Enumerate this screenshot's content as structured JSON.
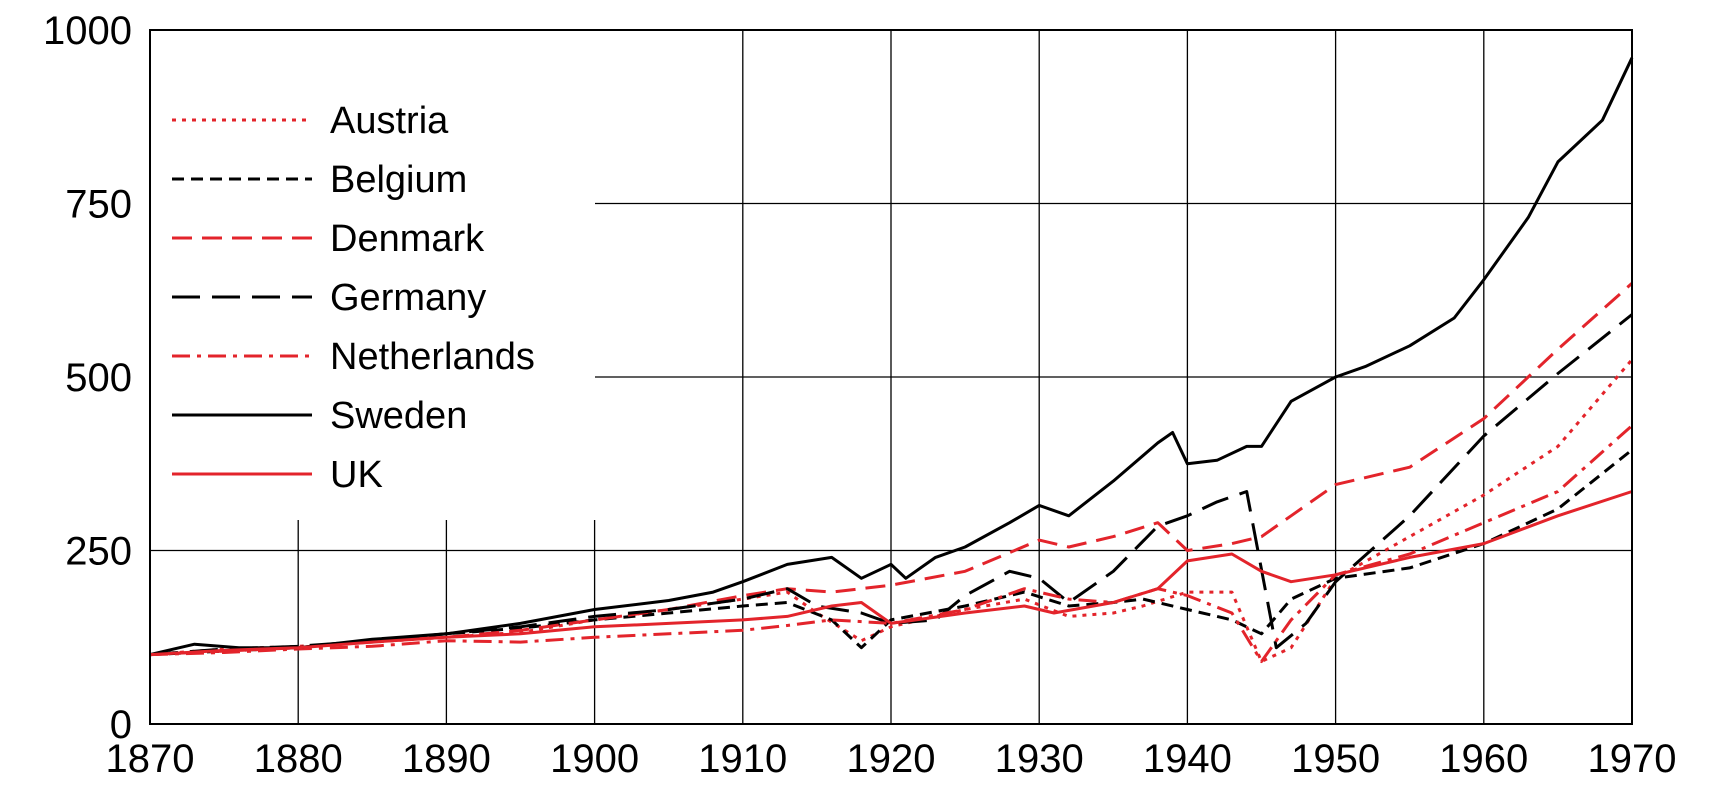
{
  "chart_data": {
    "type": "line",
    "title": "",
    "xlabel": "",
    "ylabel": "",
    "xlim": [
      1870,
      1970
    ],
    "ylim": [
      0,
      1000
    ],
    "x_ticks": [
      "1870",
      "1880",
      "1890",
      "1900",
      "1910",
      "1920",
      "1930",
      "1940",
      "1950",
      "1960",
      "1970"
    ],
    "y_ticks": [
      "0",
      "250",
      "500",
      "750",
      "1000"
    ],
    "grid": true,
    "legend_position": "top-left",
    "series": [
      {
        "name": "Austria",
        "color": "#e3242b",
        "dash": "dotted",
        "points": [
          [
            1870,
            100
          ],
          [
            1875,
            108
          ],
          [
            1880,
            112
          ],
          [
            1885,
            118
          ],
          [
            1890,
            125
          ],
          [
            1895,
            132
          ],
          [
            1900,
            150
          ],
          [
            1905,
            165
          ],
          [
            1910,
            180
          ],
          [
            1913,
            190
          ],
          [
            1915,
            160
          ],
          [
            1918,
            120
          ],
          [
            1920,
            140
          ],
          [
            1925,
            165
          ],
          [
            1929,
            180
          ],
          [
            1932,
            155
          ],
          [
            1935,
            160
          ],
          [
            1937,
            170
          ],
          [
            1940,
            190
          ],
          [
            1943,
            190
          ],
          [
            1945,
            90
          ],
          [
            1947,
            110
          ],
          [
            1950,
            210
          ],
          [
            1955,
            270
          ],
          [
            1960,
            330
          ],
          [
            1965,
            400
          ],
          [
            1970,
            525
          ]
        ]
      },
      {
        "name": "Belgium",
        "color": "#000000",
        "dash": "short-dash",
        "points": [
          [
            1870,
            100
          ],
          [
            1875,
            105
          ],
          [
            1880,
            110
          ],
          [
            1885,
            120
          ],
          [
            1890,
            130
          ],
          [
            1895,
            138
          ],
          [
            1900,
            150
          ],
          [
            1905,
            160
          ],
          [
            1910,
            170
          ],
          [
            1913,
            175
          ],
          [
            1916,
            150
          ],
          [
            1918,
            110
          ],
          [
            1920,
            150
          ],
          [
            1925,
            170
          ],
          [
            1929,
            190
          ],
          [
            1932,
            170
          ],
          [
            1935,
            175
          ],
          [
            1937,
            180
          ],
          [
            1940,
            165
          ],
          [
            1943,
            150
          ],
          [
            1945,
            130
          ],
          [
            1947,
            180
          ],
          [
            1950,
            210
          ],
          [
            1955,
            225
          ],
          [
            1960,
            260
          ],
          [
            1965,
            310
          ],
          [
            1970,
            395
          ]
        ]
      },
      {
        "name": "Denmark",
        "color": "#e3242b",
        "dash": "dash",
        "points": [
          [
            1870,
            100
          ],
          [
            1875,
            105
          ],
          [
            1880,
            110
          ],
          [
            1885,
            120
          ],
          [
            1890,
            125
          ],
          [
            1895,
            135
          ],
          [
            1900,
            150
          ],
          [
            1905,
            165
          ],
          [
            1910,
            185
          ],
          [
            1913,
            195
          ],
          [
            1916,
            190
          ],
          [
            1920,
            200
          ],
          [
            1925,
            220
          ],
          [
            1930,
            265
          ],
          [
            1932,
            255
          ],
          [
            1935,
            270
          ],
          [
            1938,
            290
          ],
          [
            1940,
            250
          ],
          [
            1943,
            260
          ],
          [
            1945,
            270
          ],
          [
            1947,
            300
          ],
          [
            1950,
            345
          ],
          [
            1955,
            370
          ],
          [
            1960,
            440
          ],
          [
            1965,
            540
          ],
          [
            1970,
            635
          ]
        ]
      },
      {
        "name": "Germany",
        "color": "#000000",
        "dash": "long-dash",
        "points": [
          [
            1870,
            100
          ],
          [
            1875,
            108
          ],
          [
            1880,
            112
          ],
          [
            1885,
            120
          ],
          [
            1890,
            130
          ],
          [
            1895,
            140
          ],
          [
            1900,
            155
          ],
          [
            1905,
            165
          ],
          [
            1910,
            180
          ],
          [
            1913,
            195
          ],
          [
            1915,
            170
          ],
          [
            1918,
            160
          ],
          [
            1920,
            145
          ],
          [
            1923,
            150
          ],
          [
            1925,
            185
          ],
          [
            1928,
            220
          ],
          [
            1930,
            210
          ],
          [
            1932,
            175
          ],
          [
            1935,
            220
          ],
          [
            1938,
            285
          ],
          [
            1940,
            300
          ],
          [
            1942,
            320
          ],
          [
            1944,
            335
          ],
          [
            1946,
            110
          ],
          [
            1948,
            145
          ],
          [
            1950,
            205
          ],
          [
            1955,
            300
          ],
          [
            1960,
            415
          ],
          [
            1965,
            505
          ],
          [
            1970,
            590
          ]
        ]
      },
      {
        "name": "Netherlands",
        "color": "#e3242b",
        "dash": "dash-dot",
        "points": [
          [
            1870,
            100
          ],
          [
            1875,
            103
          ],
          [
            1880,
            108
          ],
          [
            1885,
            112
          ],
          [
            1890,
            120
          ],
          [
            1895,
            118
          ],
          [
            1900,
            125
          ],
          [
            1905,
            130
          ],
          [
            1910,
            135
          ],
          [
            1913,
            142
          ],
          [
            1916,
            150
          ],
          [
            1920,
            145
          ],
          [
            1925,
            165
          ],
          [
            1929,
            195
          ],
          [
            1932,
            180
          ],
          [
            1935,
            175
          ],
          [
            1938,
            195
          ],
          [
            1940,
            185
          ],
          [
            1943,
            160
          ],
          [
            1945,
            90
          ],
          [
            1947,
            150
          ],
          [
            1950,
            215
          ],
          [
            1955,
            245
          ],
          [
            1960,
            290
          ],
          [
            1965,
            335
          ],
          [
            1970,
            430
          ]
        ]
      },
      {
        "name": "Sweden",
        "color": "#000000",
        "dash": "solid",
        "points": [
          [
            1870,
            100
          ],
          [
            1873,
            115
          ],
          [
            1876,
            110
          ],
          [
            1880,
            110
          ],
          [
            1885,
            122
          ],
          [
            1890,
            130
          ],
          [
            1895,
            145
          ],
          [
            1900,
            165
          ],
          [
            1905,
            178
          ],
          [
            1908,
            190
          ],
          [
            1910,
            205
          ],
          [
            1913,
            230
          ],
          [
            1916,
            240
          ],
          [
            1918,
            210
          ],
          [
            1920,
            230
          ],
          [
            1921,
            210
          ],
          [
            1923,
            240
          ],
          [
            1925,
            255
          ],
          [
            1928,
            290
          ],
          [
            1930,
            315
          ],
          [
            1932,
            300
          ],
          [
            1935,
            350
          ],
          [
            1938,
            405
          ],
          [
            1939,
            420
          ],
          [
            1940,
            375
          ],
          [
            1942,
            380
          ],
          [
            1944,
            400
          ],
          [
            1945,
            400
          ],
          [
            1947,
            465
          ],
          [
            1950,
            500
          ],
          [
            1952,
            515
          ],
          [
            1955,
            545
          ],
          [
            1958,
            585
          ],
          [
            1960,
            640
          ],
          [
            1963,
            730
          ],
          [
            1965,
            810
          ],
          [
            1968,
            870
          ],
          [
            1970,
            960
          ]
        ]
      },
      {
        "name": "UK",
        "color": "#e3242b",
        "dash": "solid",
        "points": [
          [
            1870,
            100
          ],
          [
            1875,
            106
          ],
          [
            1880,
            110
          ],
          [
            1885,
            118
          ],
          [
            1890,
            125
          ],
          [
            1895,
            130
          ],
          [
            1900,
            140
          ],
          [
            1905,
            145
          ],
          [
            1910,
            150
          ],
          [
            1913,
            155
          ],
          [
            1916,
            170
          ],
          [
            1918,
            175
          ],
          [
            1920,
            145
          ],
          [
            1925,
            160
          ],
          [
            1929,
            170
          ],
          [
            1931,
            160
          ],
          [
            1935,
            175
          ],
          [
            1938,
            195
          ],
          [
            1940,
            235
          ],
          [
            1943,
            245
          ],
          [
            1945,
            220
          ],
          [
            1947,
            205
          ],
          [
            1950,
            215
          ],
          [
            1955,
            240
          ],
          [
            1960,
            260
          ],
          [
            1965,
            300
          ],
          [
            1970,
            335
          ]
        ]
      }
    ]
  }
}
